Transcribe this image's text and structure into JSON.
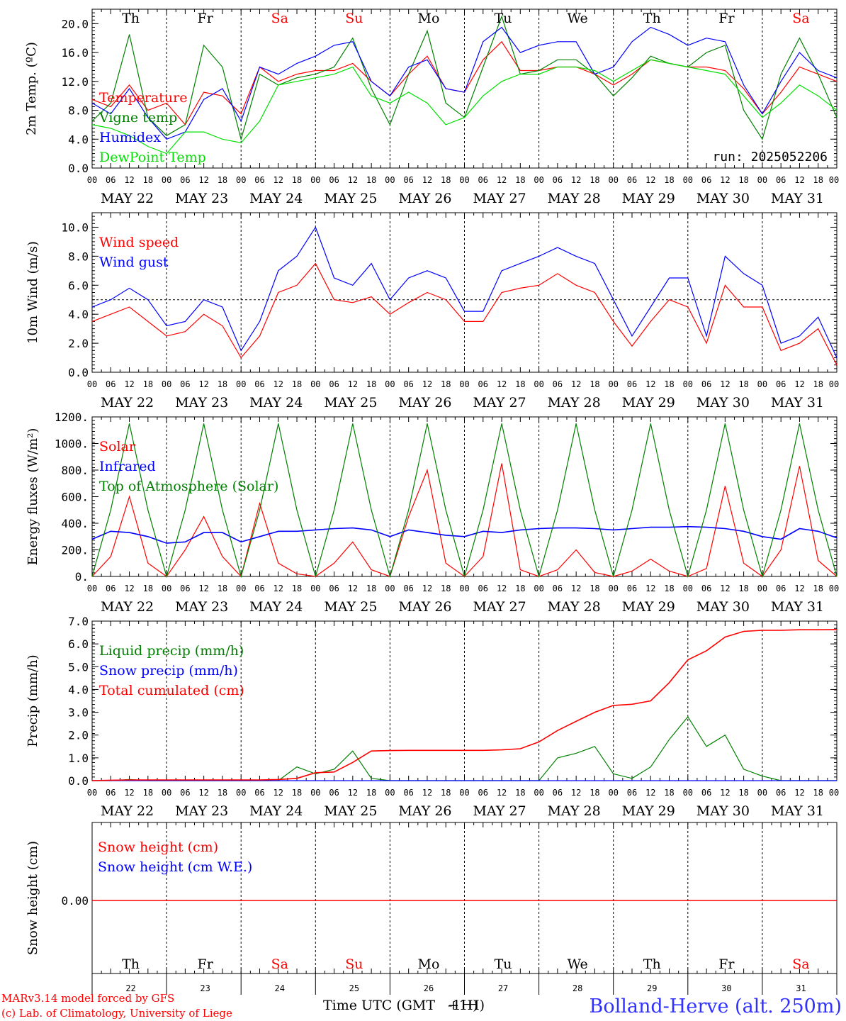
{
  "chart_data": [
    {
      "type": "line",
      "panel": "temperature",
      "ylabel": "2m Temp. (ºC)",
      "ylim": [
        0,
        22
      ],
      "yticks": [
        "0.0",
        "4.0",
        "8.0",
        "12.0",
        "16.0",
        "20.0"
      ],
      "y_tick_values": [
        0,
        4,
        8,
        12,
        16,
        20
      ],
      "x_hours": [
        0,
        6,
        12,
        18,
        24,
        30,
        36,
        42,
        48,
        54,
        60,
        66,
        72,
        78,
        84,
        90,
        96,
        102,
        108,
        114,
        120,
        126,
        132,
        138,
        144,
        150,
        156,
        162,
        168,
        174,
        180,
        186,
        192,
        198,
        204,
        210,
        216,
        222,
        228,
        234,
        240
      ],
      "run_label": "run: 2025052206",
      "series": [
        {
          "name": "Temperature",
          "color": "#ff0000",
          "values": [
            9.5,
            8.5,
            11.5,
            8.0,
            9.0,
            6.0,
            10.5,
            10.0,
            7.5,
            14.0,
            12.0,
            13.0,
            13.5,
            13.5,
            14.5,
            12.0,
            10.0,
            13.0,
            15.5,
            11.0,
            10.5,
            15.0,
            17.5,
            13.5,
            13.5,
            14.0,
            14.0,
            13.0,
            11.5,
            13.0,
            15.0,
            14.5,
            14.0,
            14.0,
            13.5,
            11.0,
            7.5,
            10.5,
            14.0,
            13.0,
            12.0
          ]
        },
        {
          "name": "Vigne temp",
          "color": "#008000",
          "values": [
            6.5,
            9.0,
            18.5,
            7.0,
            4.5,
            6.0,
            17.0,
            14.0,
            4.0,
            13.0,
            11.5,
            12.5,
            13.0,
            14.0,
            18.0,
            11.0,
            6.0,
            13.0,
            19.0,
            9.0,
            7.0,
            14.0,
            21.0,
            13.0,
            13.5,
            15.0,
            15.0,
            13.0,
            10.0,
            12.5,
            15.5,
            14.5,
            14.0,
            16.0,
            17.0,
            8.0,
            4.0,
            13.0,
            18.0,
            13.0,
            7.0
          ]
        },
        {
          "name": "Humidex",
          "color": "#0000ff",
          "values": [
            9.0,
            7.5,
            11.0,
            7.0,
            4.0,
            5.0,
            9.5,
            11.0,
            6.5,
            14.0,
            13.0,
            14.5,
            15.5,
            17.0,
            17.5,
            12.0,
            10.0,
            14.0,
            15.0,
            11.0,
            10.5,
            17.5,
            19.5,
            16.0,
            17.0,
            17.5,
            17.5,
            13.0,
            14.0,
            17.5,
            19.5,
            18.5,
            17.0,
            18.0,
            17.5,
            11.5,
            7.5,
            12.0,
            16.0,
            13.5,
            12.5
          ]
        },
        {
          "name": "DewPoint Temp",
          "color": "#00e000",
          "values": [
            6.0,
            5.5,
            4.5,
            3.0,
            2.0,
            5.0,
            5.0,
            4.0,
            3.5,
            6.5,
            11.5,
            12.0,
            12.5,
            13.0,
            14.0,
            10.0,
            9.0,
            10.5,
            9.0,
            6.0,
            7.0,
            10.0,
            12.0,
            13.0,
            13.0,
            14.0,
            14.0,
            13.5,
            12.0,
            13.5,
            15.0,
            14.5,
            14.0,
            13.5,
            13.0,
            10.0,
            7.0,
            9.0,
            11.5,
            10.0,
            8.0
          ]
        }
      ]
    },
    {
      "type": "line",
      "panel": "wind",
      "ylabel": "10m Wind (m/s)",
      "ylim": [
        0,
        11
      ],
      "yticks": [
        "0.0",
        "2.0",
        "4.0",
        "6.0",
        "8.0",
        "10.0"
      ],
      "y_tick_values": [
        0,
        2,
        4,
        6,
        8,
        10
      ],
      "reference_line": 5,
      "x_hours": [
        0,
        6,
        12,
        18,
        24,
        30,
        36,
        42,
        48,
        54,
        60,
        66,
        72,
        78,
        84,
        90,
        96,
        102,
        108,
        114,
        120,
        126,
        132,
        138,
        144,
        150,
        156,
        162,
        168,
        174,
        180,
        186,
        192,
        198,
        204,
        210,
        216,
        222,
        228,
        234,
        240
      ],
      "series": [
        {
          "name": "Wind speed",
          "color": "#ff0000",
          "values": [
            3.5,
            4.0,
            4.5,
            3.5,
            2.5,
            2.8,
            4.0,
            3.2,
            1.0,
            2.5,
            5.5,
            6.0,
            7.5,
            5.0,
            4.8,
            5.2,
            4.0,
            4.8,
            5.5,
            5.0,
            3.5,
            3.5,
            5.5,
            5.8,
            6.0,
            6.8,
            6.0,
            5.5,
            3.5,
            1.8,
            3.5,
            5.0,
            4.5,
            2.0,
            6.0,
            4.5,
            4.5,
            1.5,
            2.0,
            3.0,
            0.5
          ]
        },
        {
          "name": "Wind gust",
          "color": "#0000ff",
          "values": [
            4.5,
            5.0,
            5.8,
            5.0,
            3.2,
            3.5,
            5.0,
            4.5,
            1.5,
            3.5,
            7.0,
            8.0,
            10.0,
            6.5,
            6.0,
            7.5,
            5.0,
            6.5,
            7.0,
            6.5,
            4.2,
            4.2,
            7.0,
            7.5,
            8.0,
            8.6,
            8.0,
            7.5,
            5.0,
            2.5,
            4.5,
            6.5,
            6.5,
            2.5,
            8.0,
            6.8,
            6.0,
            2.0,
            2.5,
            3.8,
            1.0
          ]
        }
      ]
    },
    {
      "type": "line",
      "panel": "energy",
      "ylabel": "Energy fluxes (W/m²)",
      "ylim": [
        0,
        1200
      ],
      "yticks": [
        "0.",
        "200.",
        "400.",
        "600.",
        "800.",
        "1000.",
        "1200."
      ],
      "y_tick_values": [
        0,
        200,
        400,
        600,
        800,
        1000,
        1200
      ],
      "x_hours": [
        0,
        6,
        12,
        18,
        24,
        30,
        36,
        42,
        48,
        54,
        60,
        66,
        72,
        78,
        84,
        90,
        96,
        102,
        108,
        114,
        120,
        126,
        132,
        138,
        144,
        150,
        156,
        162,
        168,
        174,
        180,
        186,
        192,
        198,
        204,
        210,
        216,
        222,
        228,
        234,
        240
      ],
      "series": [
        {
          "name": "Solar",
          "color": "#ff0000",
          "values": [
            0,
            150,
            600,
            100,
            0,
            200,
            450,
            150,
            0,
            550,
            100,
            20,
            0,
            100,
            260,
            50,
            0,
            450,
            800,
            100,
            0,
            150,
            850,
            50,
            0,
            50,
            200,
            30,
            0,
            40,
            130,
            40,
            0,
            60,
            680,
            100,
            0,
            200,
            830,
            120,
            0
          ]
        },
        {
          "name": "Infrared",
          "color": "#0000ff",
          "values": [
            280,
            340,
            330,
            300,
            250,
            260,
            330,
            330,
            260,
            300,
            340,
            340,
            350,
            360,
            365,
            350,
            300,
            350,
            330,
            310,
            300,
            340,
            330,
            350,
            360,
            365,
            365,
            360,
            350,
            360,
            370,
            370,
            375,
            370,
            360,
            340,
            300,
            280,
            360,
            340,
            290
          ]
        },
        {
          "name": "Top of Atmosphere (Solar)",
          "color": "#008000",
          "values": [
            0,
            500,
            1150,
            500,
            0,
            500,
            1150,
            500,
            0,
            500,
            1150,
            500,
            0,
            500,
            1150,
            500,
            0,
            500,
            1150,
            500,
            0,
            500,
            1150,
            500,
            0,
            500,
            1150,
            500,
            0,
            500,
            1150,
            500,
            0,
            500,
            1150,
            500,
            0,
            500,
            1150,
            500,
            0
          ]
        }
      ]
    },
    {
      "type": "line",
      "panel": "precip",
      "ylabel": "Precip (mm/h)",
      "ylim": [
        0,
        7
      ],
      "yticks": [
        "0.0",
        "1.0",
        "2.0",
        "3.0",
        "4.0",
        "5.0",
        "6.0",
        "7.0"
      ],
      "y_tick_values": [
        0,
        1,
        2,
        3,
        4,
        5,
        6,
        7
      ],
      "x_hours": [
        0,
        6,
        12,
        18,
        24,
        30,
        36,
        42,
        48,
        54,
        60,
        66,
        72,
        78,
        84,
        90,
        96,
        102,
        108,
        114,
        120,
        126,
        132,
        138,
        144,
        150,
        156,
        162,
        168,
        174,
        180,
        186,
        192,
        198,
        204,
        210,
        216,
        222,
        228,
        234,
        240
      ],
      "series": [
        {
          "name": "Liquid precip (mm/h)",
          "color": "#008000",
          "values": [
            0,
            0,
            0.05,
            0,
            0,
            0,
            0,
            0,
            0,
            0,
            0,
            0.6,
            0.3,
            0.5,
            1.3,
            0.1,
            0,
            0,
            0,
            0,
            0,
            0,
            0,
            0,
            0,
            1.0,
            1.2,
            1.5,
            0.3,
            0.1,
            0.6,
            1.8,
            2.8,
            1.5,
            2.0,
            0.5,
            0.2,
            0,
            0,
            0,
            0
          ]
        },
        {
          "name": "Snow precip (mm/h)",
          "color": "#0000ff",
          "values": [
            0,
            0,
            0,
            0,
            0,
            0,
            0,
            0,
            0,
            0,
            0,
            0,
            0,
            0,
            0,
            0,
            0,
            0,
            0,
            0,
            0,
            0,
            0,
            0,
            0,
            0,
            0,
            0,
            0,
            0,
            0,
            0,
            0,
            0,
            0,
            0,
            0,
            0,
            0,
            0,
            0
          ]
        },
        {
          "name": "Total cumulated (cm)",
          "color": "#ff0000",
          "values": [
            0,
            0.02,
            0.03,
            0.03,
            0.03,
            0.03,
            0.03,
            0.03,
            0.03,
            0.03,
            0.05,
            0.1,
            0.35,
            0.38,
            0.8,
            1.3,
            1.32,
            1.33,
            1.33,
            1.33,
            1.33,
            1.33,
            1.35,
            1.4,
            1.7,
            2.2,
            2.6,
            3.0,
            3.3,
            3.35,
            3.5,
            4.3,
            5.3,
            5.7,
            6.3,
            6.55,
            6.6,
            6.6,
            6.62,
            6.62,
            6.63
          ]
        }
      ]
    },
    {
      "type": "line",
      "panel": "snow",
      "ylabel": "Snow height (cm)",
      "yticks": [
        "0.00"
      ],
      "y_tick_values": [
        0
      ],
      "x_hours": [
        0,
        240
      ],
      "series": [
        {
          "name": "Snow height (cm)",
          "color": "#ff0000",
          "values": [
            0,
            0
          ]
        },
        {
          "name": "Snow height (cm W.E.)",
          "color": "#0000ff",
          "values": [
            0,
            0
          ]
        }
      ]
    }
  ],
  "axis": {
    "hour_ticks": [
      "00",
      "06",
      "12",
      "18"
    ],
    "last_hour_tick": "00",
    "dates": [
      "MAY 22",
      "MAY 23",
      "MAY 24",
      "MAY 25",
      "MAY 26",
      "MAY 27",
      "MAY 28",
      "MAY 29",
      "MAY 30",
      "MAY 31"
    ],
    "day_numbers": [
      "22",
      "23",
      "24",
      "25",
      "26",
      "27",
      "28",
      "29",
      "30",
      "31"
    ],
    "weekdays": [
      {
        "label": "Th",
        "color": "#000000"
      },
      {
        "label": "Fr",
        "color": "#000000"
      },
      {
        "label": "Sa",
        "color": "#ff0000"
      },
      {
        "label": "Su",
        "color": "#ff0000"
      },
      {
        "label": "Mo",
        "color": "#000000"
      },
      {
        "label": "Tu",
        "color": "#000000"
      },
      {
        "label": "We",
        "color": "#000000"
      },
      {
        "label": "Th",
        "color": "#000000"
      },
      {
        "label": "Fr",
        "color": "#000000"
      },
      {
        "label": "Sa",
        "color": "#ff0000"
      }
    ],
    "xlabel_base": "Time UTC (GMT",
    "xlabel_overlap_a": "+1H)",
    "xlabel_overlap_b": "-1H)"
  },
  "footer": {
    "credit_line1": "MARv3.14 model forced by GFS",
    "credit_line2": "(c) Lab. of Climatology, University of Liege",
    "location": "Bolland-Herve (alt. 250m)"
  }
}
